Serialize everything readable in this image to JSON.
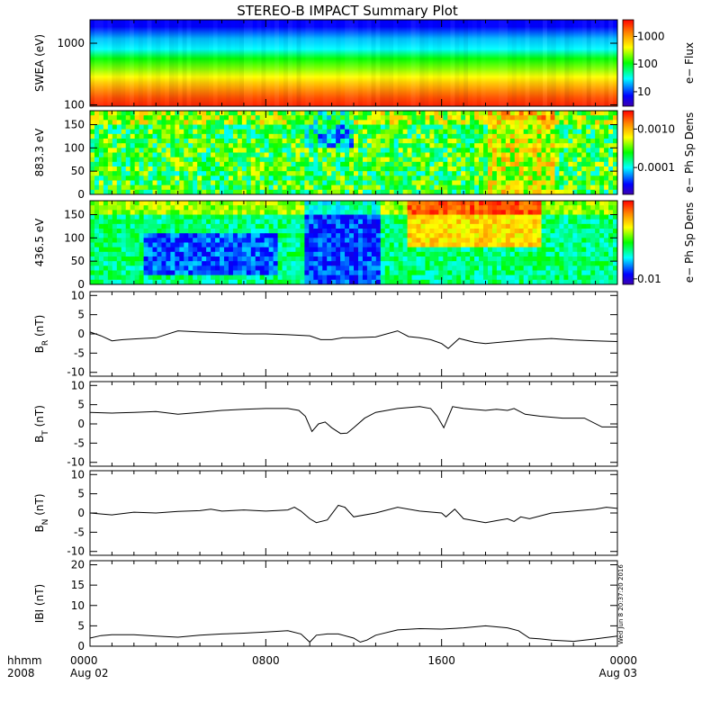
{
  "title": "STEREO-B IMPACT Summary Plot",
  "footer": {
    "hhmm": "hhmm",
    "year": "2008",
    "timestamp": "Wed Jun  8 20:37:20 2016"
  },
  "colors": {
    "line": "#000000",
    "background": "#ffffff",
    "colormap": [
      "#3b00b0",
      "#0000ff",
      "#00ffff",
      "#00ff00",
      "#ffff00",
      "#ff8c00",
      "#ff0000"
    ]
  },
  "chart_data": [
    {
      "type": "heatmap",
      "id": "swea",
      "ylabel": "SWEA (eV)",
      "yscale": "log",
      "yticks": [
        "1000",
        "100"
      ],
      "ytick_values": [
        1000,
        100
      ],
      "ylim": [
        95,
        2400
      ],
      "colorbar": {
        "label": "e− Flux",
        "scale": "log",
        "ticks": [
          "1000",
          "100",
          "10"
        ],
        "tick_values": [
          1000,
          100,
          10
        ],
        "range": [
          3,
          4000
        ]
      }
    },
    {
      "type": "heatmap",
      "id": "pad883",
      "ylabel": "883.3 eV",
      "yticks": [
        "150",
        "100",
        "50",
        "0"
      ],
      "ytick_values": [
        150,
        100,
        50,
        0
      ],
      "ylim": [
        0,
        180
      ],
      "colorbar": {
        "label": "e− Ph Sp Dens",
        "scale": "log",
        "ticks": [
          "0.0010",
          "0.0001"
        ],
        "tick_values": [
          0.001,
          0.0001
        ],
        "range": [
          2e-05,
          0.003
        ]
      }
    },
    {
      "type": "heatmap",
      "id": "pad436",
      "ylabel": "436.5 eV",
      "yticks": [
        "150",
        "100",
        "50",
        "0"
      ],
      "ytick_values": [
        150,
        100,
        50,
        0
      ],
      "ylim": [
        0,
        180
      ],
      "colorbar": {
        "label": "e− Ph Sp Dens",
        "scale": "log",
        "ticks": [
          "0.01"
        ],
        "tick_values": [
          0.01
        ],
        "range": [
          0.0085,
          0.1
        ]
      }
    },
    {
      "type": "line",
      "id": "br",
      "ylabel_main": "B",
      "ylabel_sub": "R",
      "ylabel_unit": " (nT)",
      "yticks": [
        "10",
        "5",
        "0",
        "-5",
        "-10"
      ],
      "ytick_values": [
        10,
        5,
        0,
        -5,
        -10
      ],
      "ylim": [
        -11,
        11
      ],
      "x": [
        0,
        0.5,
        1,
        1.5,
        2,
        3,
        4,
        5,
        6,
        7,
        8,
        9,
        10,
        10.5,
        11,
        11.5,
        12,
        13,
        14,
        14.5,
        15,
        15.5,
        16,
        16.3,
        16.8,
        17.5,
        18,
        19,
        20,
        21,
        22,
        23,
        24
      ],
      "y": [
        0.5,
        -0.5,
        -1.8,
        -1.5,
        -1.3,
        -1,
        0.8,
        0.5,
        0.3,
        0,
        0,
        -0.2,
        -0.5,
        -1.5,
        -1.5,
        -1,
        -1,
        -0.8,
        0.8,
        -0.7,
        -1,
        -1.5,
        -2.5,
        -3.8,
        -1.2,
        -2.2,
        -2.5,
        -2,
        -1.5,
        -1.2,
        -1.6,
        -1.8,
        -2
      ]
    },
    {
      "type": "line",
      "id": "bt",
      "ylabel_main": "B",
      "ylabel_sub": "T",
      "ylabel_unit": " (nT)",
      "yticks": [
        "10",
        "5",
        "0",
        "-5",
        "-10"
      ],
      "ytick_values": [
        10,
        5,
        0,
        -5,
        -10
      ],
      "ylim": [
        -11,
        11
      ],
      "x": [
        0,
        1,
        2,
        3,
        4,
        5,
        6,
        7,
        8,
        9,
        9.5,
        9.8,
        10.1,
        10.4,
        10.7,
        11,
        11.4,
        11.7,
        12,
        12.5,
        13,
        14,
        15,
        15.5,
        15.8,
        16.1,
        16.5,
        17,
        18,
        18.5,
        19,
        19.3,
        19.8,
        20.5,
        21.5,
        22.5,
        23.3,
        24
      ],
      "y": [
        3,
        2.8,
        3,
        3.2,
        2.5,
        3,
        3.5,
        3.8,
        4,
        4,
        3.5,
        2,
        -2,
        0,
        0.5,
        -1,
        -2.5,
        -2.4,
        -1,
        1.5,
        3,
        4,
        4.5,
        4,
        2,
        -1,
        4.5,
        4,
        3.5,
        3.8,
        3.5,
        4,
        2.5,
        2,
        1.5,
        1.5,
        -0.8,
        -0.8
      ]
    },
    {
      "type": "line",
      "id": "bn",
      "ylabel_main": "B",
      "ylabel_sub": "N",
      "ylabel_unit": " (nT)",
      "yticks": [
        "10",
        "5",
        "0",
        "-5",
        "-10"
      ],
      "ytick_values": [
        10,
        5,
        0,
        -5,
        -10
      ],
      "ylim": [
        -11,
        11
      ],
      "x": [
        0,
        1,
        2,
        3,
        4,
        5,
        5.5,
        6,
        7,
        8,
        9,
        9.3,
        9.6,
        10,
        10.3,
        10.8,
        11.3,
        11.6,
        12,
        13,
        14,
        15,
        16,
        16.2,
        16.6,
        17,
        18,
        18.5,
        19,
        19.3,
        19.6,
        20,
        21,
        22,
        23,
        23.5,
        24
      ],
      "y": [
        0,
        -0.5,
        0.2,
        0,
        0.4,
        0.6,
        1,
        0.5,
        0.8,
        0.5,
        0.8,
        1.5,
        0.5,
        -1.5,
        -2.5,
        -1.8,
        2,
        1.5,
        -1,
        0,
        1.5,
        0.5,
        0,
        -1,
        1,
        -1.5,
        -2.5,
        -2,
        -1.5,
        -2.2,
        -1,
        -1.5,
        0,
        0.5,
        1,
        1.5,
        1.2
      ]
    },
    {
      "type": "line",
      "id": "bmag",
      "ylabel_main": "IBI",
      "ylabel_sub": "",
      "ylabel_unit": " (nT)",
      "yticks": [
        "20",
        "15",
        "10",
        "5",
        "0"
      ],
      "ytick_values": [
        20,
        15,
        10,
        5,
        0
      ],
      "ylim": [
        0,
        21
      ],
      "x": [
        0,
        0.5,
        1,
        2,
        3,
        4,
        5,
        6,
        7,
        8,
        9,
        9.6,
        10,
        10.3,
        10.8,
        11.3,
        12,
        12.3,
        12.6,
        13,
        14,
        15,
        16,
        17,
        18,
        19,
        19.5,
        20,
        20.5,
        21,
        22,
        22.5,
        23,
        24
      ],
      "y": [
        2,
        2.6,
        2.8,
        2.8,
        2.5,
        2.2,
        2.7,
        3,
        3.2,
        3.5,
        3.8,
        3,
        1,
        2.7,
        3,
        3,
        2,
        1,
        1.5,
        2.7,
        4,
        4.3,
        4.2,
        4.5,
        5,
        4.5,
        3.8,
        2,
        1.8,
        1.5,
        1.2,
        1.5,
        1.8,
        2.5
      ]
    }
  ],
  "xaxis": {
    "ticks": [
      {
        "hour": 0,
        "label": "0000",
        "date": "Aug 02"
      },
      {
        "hour": 8,
        "label": "0800",
        "date": ""
      },
      {
        "hour": 16,
        "label": "1600",
        "date": ""
      },
      {
        "hour": 24,
        "label": "0000",
        "date": "Aug 03"
      }
    ],
    "range_hours": [
      0,
      24
    ]
  }
}
